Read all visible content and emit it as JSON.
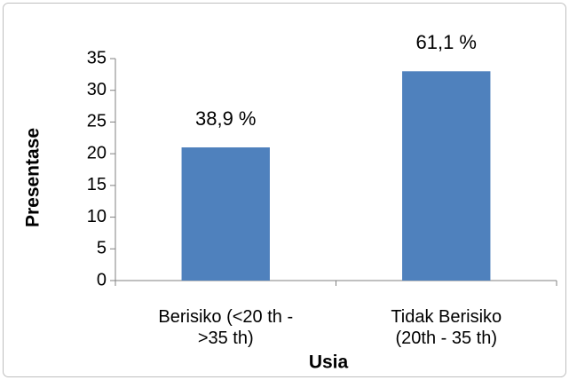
{
  "chart_data": {
    "type": "bar",
    "categories": [
      "Berisiko (<20 th -\n>35 th)",
      "Tidak Berisiko\n(20th - 35 th)"
    ],
    "values": [
      21,
      33
    ],
    "annotations": [
      "38,9 %",
      "61,1 %"
    ],
    "color": "#4f81bd",
    "xlabel": "Usia",
    "ylabel": "Presentase",
    "ylim": [
      0,
      35
    ],
    "yticks": [
      0,
      5,
      10,
      15,
      20,
      25,
      30,
      35
    ],
    "grid": false
  }
}
